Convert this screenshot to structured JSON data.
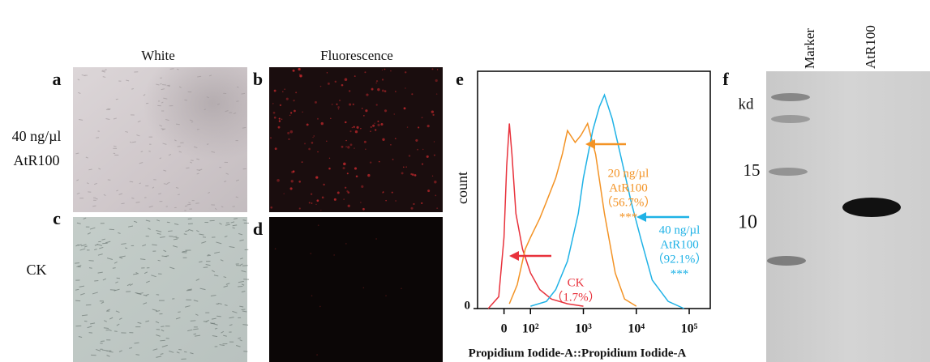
{
  "column_labels": [
    "White",
    "Fluorescence"
  ],
  "panel_letters": [
    "a",
    "b",
    "c",
    "d",
    "e",
    "f"
  ],
  "row_labels": [
    [
      "40 ng/µl",
      "AtR100"
    ],
    [
      "CK"
    ]
  ],
  "chart_data": {
    "type": "line",
    "x_label": "Propidium Iodide-A::Propidium Iodide-A",
    "y_label": "count",
    "xscale": "biexponential",
    "xlim": [
      -100,
      250000
    ],
    "xticks": [
      0,
      {
        "value": 100,
        "label": "10²"
      },
      {
        "value": 1000,
        "label": "10³"
      },
      {
        "value": 10000,
        "label": "10⁴"
      },
      {
        "value": 100000,
        "label": "10⁵"
      }
    ],
    "ylim": [
      0,
      100
    ],
    "yticks": [
      0
    ],
    "series": [
      {
        "color": "#e8323c",
        "x": [
          -60,
          -20,
          0,
          10,
          20,
          30,
          45,
          70,
          100,
          150,
          250,
          500,
          1000
        ],
        "values": [
          0,
          5,
          30,
          60,
          78,
          65,
          40,
          25,
          15,
          8,
          4,
          2,
          1
        ]
      },
      {
        "color": "#f39325",
        "x": [
          20,
          50,
          80,
          100,
          150,
          200,
          300,
          400,
          500,
          700,
          900,
          1200,
          1700,
          2500,
          4000,
          6000,
          10000
        ],
        "values": [
          2,
          10,
          25,
          30,
          38,
          45,
          55,
          65,
          75,
          70,
          73,
          78,
          65,
          40,
          15,
          4,
          1
        ]
      },
      {
        "color": "#1fb2e6",
        "x": [
          100,
          200,
          300,
          500,
          800,
          1000,
          1500,
          2000,
          2500,
          3500,
          5000,
          8000,
          12000,
          20000,
          40000,
          80000
        ],
        "values": [
          1,
          3,
          8,
          20,
          40,
          55,
          75,
          85,
          90,
          80,
          65,
          45,
          30,
          12,
          3,
          0
        ]
      }
    ],
    "annotations": [
      {
        "color": "#e8323c",
        "lines": [
          "CK",
          "（1.7%）"
        ]
      },
      {
        "color": "#f39325",
        "lines": [
          "20 ng/µl",
          "AtR100",
          "（56.7%）",
          "***"
        ]
      },
      {
        "color": "#1fb2e6",
        "lines": [
          "40 ng/µl",
          "AtR100",
          "（92.1%）",
          "***"
        ]
      }
    ]
  },
  "blot": {
    "lane_labels": [
      "Marker",
      "AtR100"
    ],
    "unit": "kd",
    "sizes": [
      "15",
      "10"
    ]
  }
}
